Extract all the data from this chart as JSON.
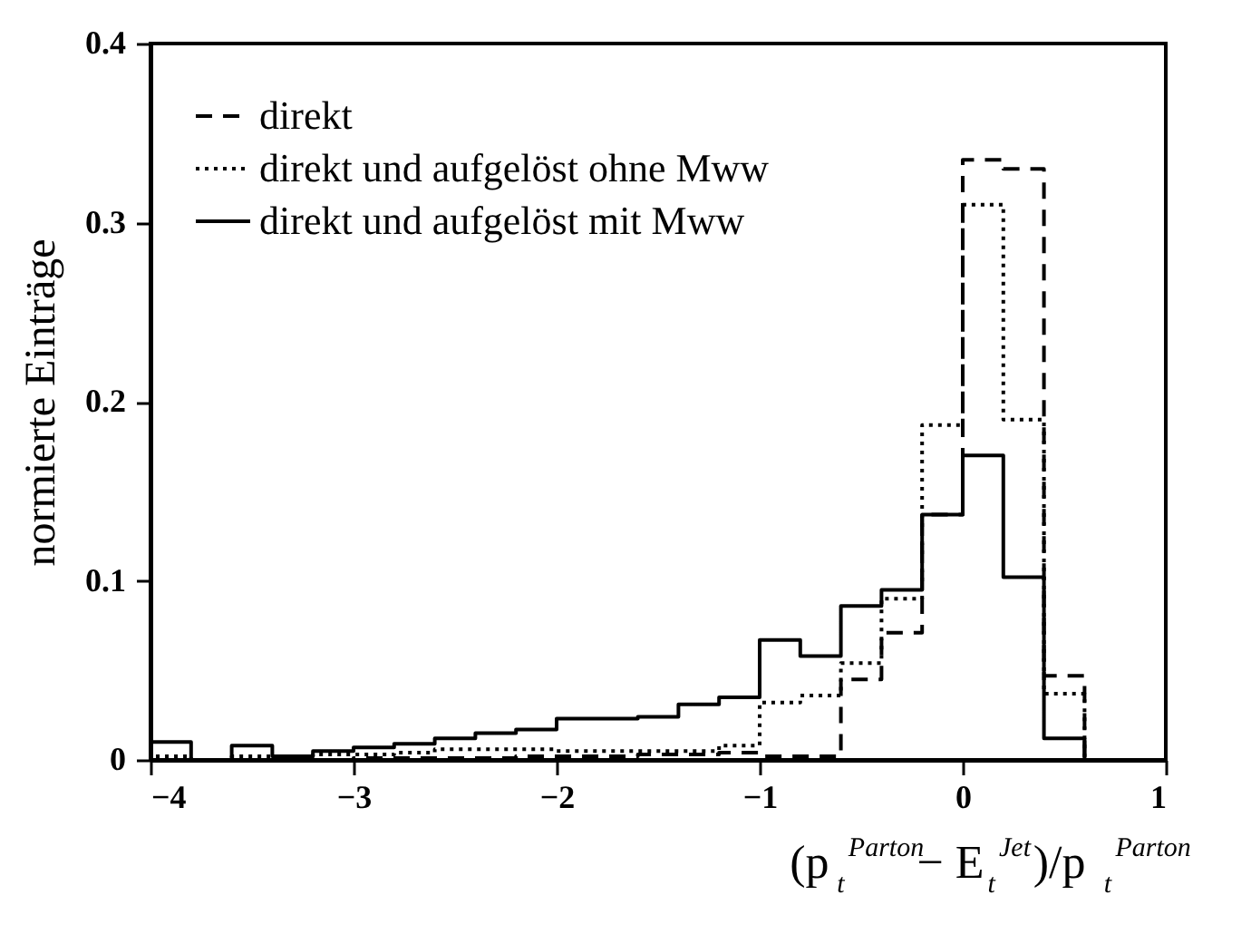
{
  "chart_data": {
    "type": "histogram",
    "xlabel": "(p$_{t}$$^{Parton}$− E$_{t}$$^{Jet}$)/p$_{t}$$^{Parton}$",
    "ylabel": "normierte Einträge",
    "bins": [
      -4.0,
      -3.8,
      -3.6,
      -3.4,
      -3.2,
      -3.0,
      -2.8,
      -2.6,
      -2.4,
      -2.2,
      -2.0,
      -1.8,
      -1.6,
      -1.4,
      -1.2,
      -1.0,
      -0.8,
      -0.6,
      -0.4,
      -0.2,
      0.0,
      0.2,
      0.4,
      0.6
    ],
    "series": [
      {
        "name": "direkt",
        "color": "#000000",
        "line_style": "dashed",
        "values": [
          0,
          0,
          0,
          0,
          0,
          0.001,
          0.001,
          0.001,
          0.001,
          0.002,
          0.002,
          0.002,
          0.003,
          0.003,
          0.004,
          0.002,
          0.002,
          0.045,
          0.071,
          0.137,
          0.335,
          0.33,
          0.047
        ]
      },
      {
        "name": "direkt und aufgelöst ohne Mww",
        "color": "#000000",
        "line_style": "dotted",
        "values": [
          0.002,
          0,
          0.002,
          0.002,
          0.003,
          0.003,
          0.004,
          0.006,
          0.006,
          0.006,
          0.005,
          0.005,
          0.005,
          0.005,
          0.008,
          0.032,
          0.036,
          0.054,
          0.09,
          0.187,
          0.31,
          0.19,
          0.037
        ]
      },
      {
        "name": "direkt und aufgelöst mit Mww",
        "color": "#000000",
        "line_style": "solid",
        "values": [
          0.01,
          0,
          0.008,
          0.002,
          0.005,
          0.007,
          0.009,
          0.012,
          0.015,
          0.017,
          0.023,
          0.023,
          0.024,
          0.031,
          0.035,
          0.067,
          0.058,
          0.086,
          0.095,
          0.137,
          0.17,
          0.102,
          0.012
        ]
      }
    ],
    "xlim": [
      -4,
      1
    ],
    "ylim": [
      0,
      0.4
    ],
    "xticks": [
      -4,
      -3,
      -2,
      -1,
      0,
      1
    ],
    "yticks": [
      0,
      0.1,
      0.2,
      0.3,
      0.4
    ],
    "legend": "top left",
    "grid": false
  }
}
